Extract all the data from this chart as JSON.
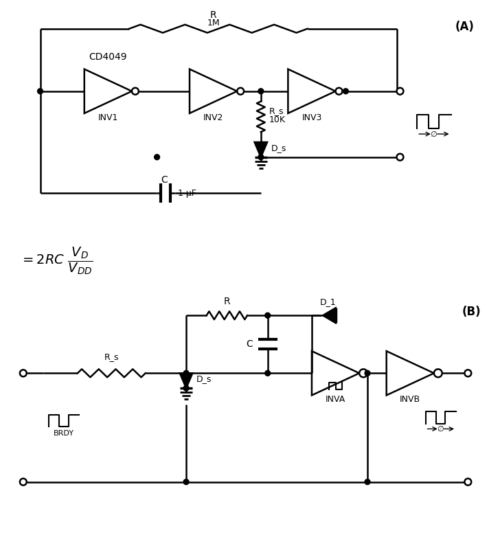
{
  "bg_color": "#ffffff",
  "line_color": "#000000",
  "title_A": "(A)",
  "title_B": "(B)",
  "label_cd4049": "CD4049",
  "label_inv1": "INV1",
  "label_inv2": "INV2",
  "label_inv3": "INV3",
  "label_inva": "INVA",
  "label_invb": "INVB",
  "label_R_top": "R",
  "label_R_val": "1M",
  "label_Rs_A": "R_s",
  "label_Rs_A_val": "10K",
  "label_C_A": "C",
  "label_C_A_val": "1 μF",
  "label_Ds_A": "D_s",
  "label_R_B": "R",
  "label_Rs_B": "R_s",
  "label_C_B": "C",
  "label_Ds_B": "D_s",
  "label_D1_B": "D_1",
  "label_brdy": "BRDY"
}
